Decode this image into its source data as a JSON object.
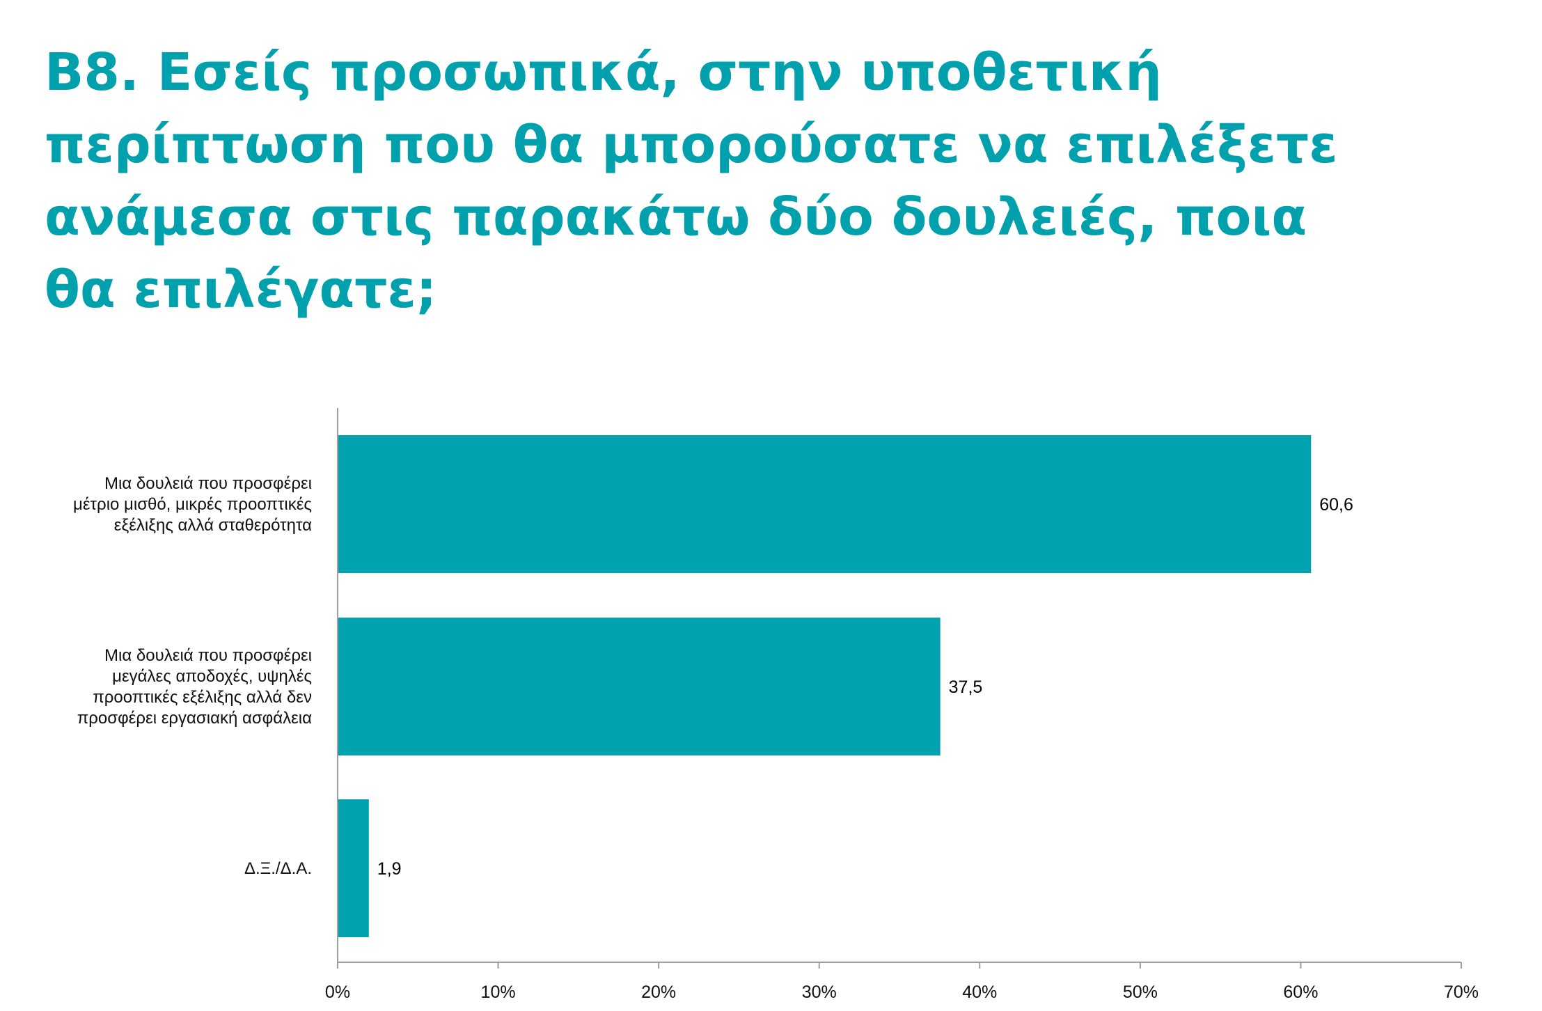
{
  "title_lines": [
    "B8. Εσείς προσωπικά, στην υποθετική",
    "περίπτωση που θα μπορούσατε να επιλέξετε",
    "ανάμεσα στις παρακάτω δύο δουλειές, ποια",
    "θα επιλέγατε;"
  ],
  "colors": {
    "accent": "#00a0ad",
    "bar": "#00a2b0",
    "axis": "#9e9e9e"
  },
  "chart_data": {
    "type": "bar",
    "orientation": "horizontal",
    "title": "B8. Εσείς προσωπικά, στην υποθετική περίπτωση που θα μπορούσατε να επιλέξετε ανάμεσα στις παρακάτω δύο δουλειές, ποια θα επιλέγατε;",
    "categories": [
      [
        "Μια δουλειά που προσφέρει",
        "μέτριο μισθό, μικρές προοπτικές",
        "εξέλιξης αλλά σταθερότητα"
      ],
      [
        "Μια δουλειά που προσφέρει",
        "μεγάλες αποδοχές, υψηλές",
        "προοπτικές εξέλιξης αλλά δεν",
        "προσφέρει εργασιακή ασφάλεια"
      ],
      [
        "Δ.Ξ./Δ.Α."
      ]
    ],
    "values": [
      60.6,
      37.5,
      1.9
    ],
    "value_labels": [
      "60,6",
      "37,5",
      "1,9"
    ],
    "xlim": [
      0,
      70
    ],
    "ticks": [
      0,
      10,
      20,
      30,
      40,
      50,
      60,
      70
    ],
    "tick_labels": [
      "0%",
      "10%",
      "20%",
      "30%",
      "40%",
      "50%",
      "60%",
      "70%"
    ],
    "grid": false,
    "legend": "none"
  }
}
